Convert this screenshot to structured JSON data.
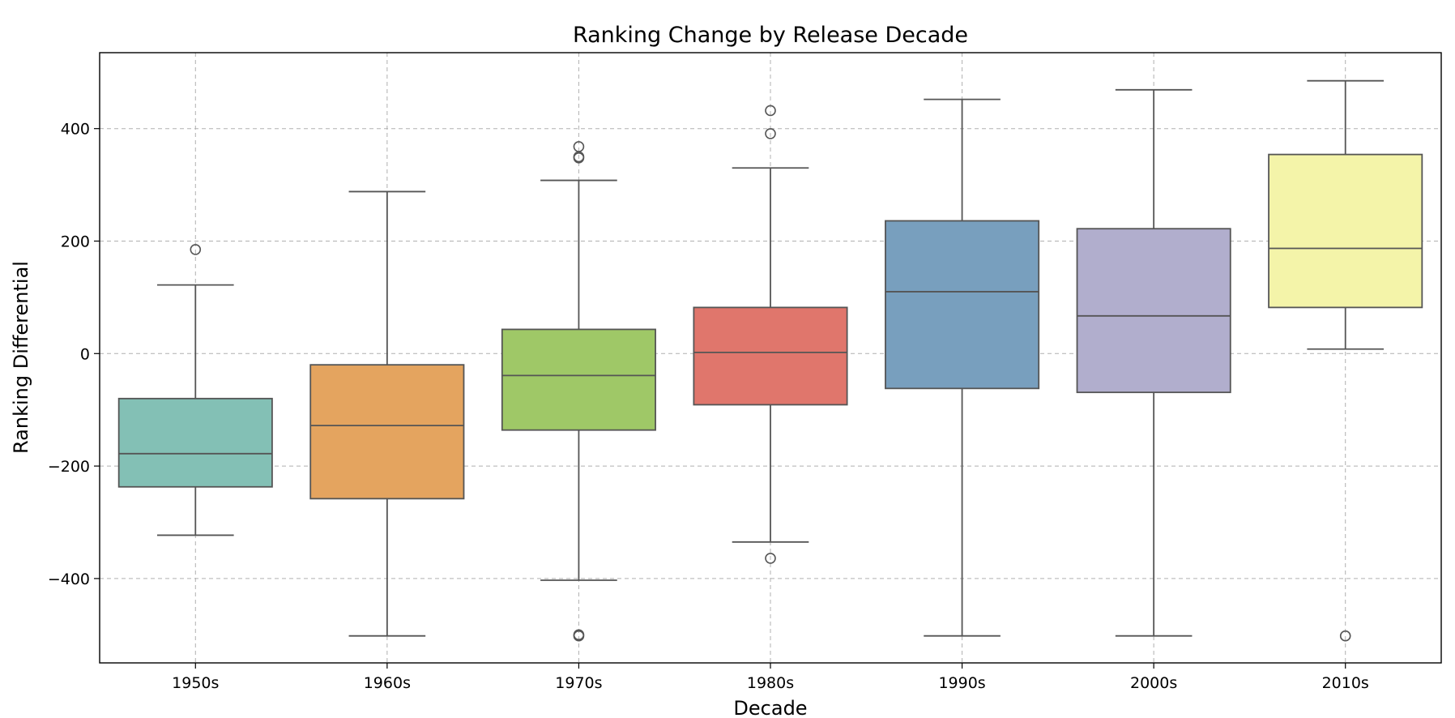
{
  "chart_data": {
    "type": "box",
    "title": "Ranking Change by Release Decade",
    "xlabel": "Decade",
    "ylabel": "Ranking Differential",
    "ylim": [
      -550,
      535
    ],
    "yticks": [
      -400,
      -200,
      0,
      200,
      400
    ],
    "ytick_labels": [
      "−400",
      "−200",
      "0",
      "200",
      "400"
    ],
    "grid": true,
    "categories": [
      "1950s",
      "1960s",
      "1970s",
      "1980s",
      "1990s",
      "2000s",
      "2010s"
    ],
    "boxes": [
      {
        "category": "1950s",
        "whisker_low": -323,
        "q1": -237,
        "median": -178,
        "q3": -80,
        "whisker_high": 122,
        "outliers": [
          185
        ],
        "color": "#83c0b5"
      },
      {
        "category": "1960s",
        "whisker_low": -502,
        "q1": -258,
        "median": -128,
        "q3": -20,
        "whisker_high": 288,
        "outliers": [],
        "color": "#e4a45f"
      },
      {
        "category": "1970s",
        "whisker_low": -403,
        "q1": -136,
        "median": -39,
        "q3": 43,
        "whisker_high": 308,
        "outliers": [
          368,
          348,
          350,
          -502,
          -500
        ],
        "color": "#9fc867"
      },
      {
        "category": "1980s",
        "whisker_low": -335,
        "q1": -91,
        "median": 2,
        "q3": 82,
        "whisker_high": 330,
        "outliers": [
          432,
          391,
          -364
        ],
        "color": "#e0766c"
      },
      {
        "category": "1990s",
        "whisker_low": -502,
        "q1": -62,
        "median": 110,
        "q3": 236,
        "whisker_high": 452,
        "outliers": [],
        "color": "#789fbe"
      },
      {
        "category": "2000s",
        "whisker_low": -502,
        "q1": -69,
        "median": 67,
        "q3": 222,
        "whisker_high": 469,
        "outliers": [],
        "color": "#b1aecd"
      },
      {
        "category": "2010s",
        "whisker_low": 8,
        "q1": 82,
        "median": 187,
        "q3": 354,
        "whisker_high": 485,
        "outliers": [
          -502
        ],
        "color": "#f4f4a9"
      }
    ]
  }
}
